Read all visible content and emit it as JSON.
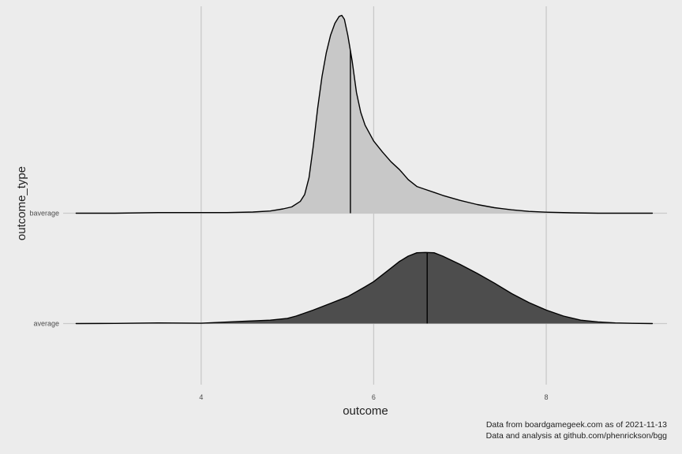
{
  "chart_data": {
    "type": "ridgeline",
    "title": "",
    "xlabel": "outcome",
    "ylabel": "outcome_type",
    "xlim": [
      2.4,
      9.4
    ],
    "x_ticks": [
      4,
      6,
      8
    ],
    "x_tick_labels": [
      "4",
      "6",
      "8"
    ],
    "grid": "vertical-major",
    "legend": "none",
    "caption": [
      "Data from boardgamegeek.com as of 2021-11-13",
      "Data and analysis at github.com/phenrickson/bgg"
    ],
    "series": [
      {
        "name": "baverage",
        "fill": "#c8c8c8",
        "median": 5.73,
        "density": {
          "x": [
            2.55,
            3.0,
            3.5,
            4.0,
            4.3,
            4.6,
            4.8,
            4.95,
            5.05,
            5.15,
            5.2,
            5.25,
            5.3,
            5.35,
            5.4,
            5.45,
            5.5,
            5.55,
            5.6,
            5.63,
            5.66,
            5.7,
            5.75,
            5.8,
            5.85,
            5.9,
            6.0,
            6.1,
            6.2,
            6.3,
            6.4,
            6.5,
            6.6,
            6.7,
            6.8,
            7.0,
            7.2,
            7.4,
            7.6,
            7.8,
            8.0,
            8.3,
            8.6,
            9.0,
            9.23
          ],
          "y": [
            0.0,
            0.0,
            0.003,
            0.003,
            0.003,
            0.006,
            0.011,
            0.022,
            0.032,
            0.06,
            0.095,
            0.18,
            0.34,
            0.53,
            0.69,
            0.81,
            0.9,
            0.96,
            0.995,
            1.0,
            0.98,
            0.9,
            0.77,
            0.61,
            0.51,
            0.445,
            0.365,
            0.31,
            0.26,
            0.22,
            0.17,
            0.135,
            0.12,
            0.105,
            0.09,
            0.065,
            0.044,
            0.028,
            0.017,
            0.009,
            0.005,
            0.002,
            0.0,
            0.0,
            0.0
          ]
        }
      },
      {
        "name": "average",
        "fill": "#4d4d4d",
        "median": 6.62,
        "density": {
          "x": [
            2.55,
            3.0,
            3.5,
            4.0,
            4.2,
            4.5,
            4.8,
            5.0,
            5.1,
            5.3,
            5.5,
            5.7,
            5.9,
            6.0,
            6.2,
            6.3,
            6.4,
            6.5,
            6.6,
            6.7,
            6.8,
            7.0,
            7.2,
            7.4,
            7.6,
            7.8,
            8.0,
            8.2,
            8.4,
            8.6,
            8.8,
            9.0,
            9.23
          ],
          "y": [
            0.0,
            0.002,
            0.008,
            0.004,
            0.015,
            0.03,
            0.045,
            0.07,
            0.1,
            0.18,
            0.27,
            0.36,
            0.49,
            0.56,
            0.74,
            0.83,
            0.9,
            0.945,
            0.95,
            0.945,
            0.9,
            0.79,
            0.67,
            0.54,
            0.4,
            0.28,
            0.18,
            0.1,
            0.045,
            0.022,
            0.008,
            0.003,
            0.0
          ]
        }
      }
    ]
  }
}
